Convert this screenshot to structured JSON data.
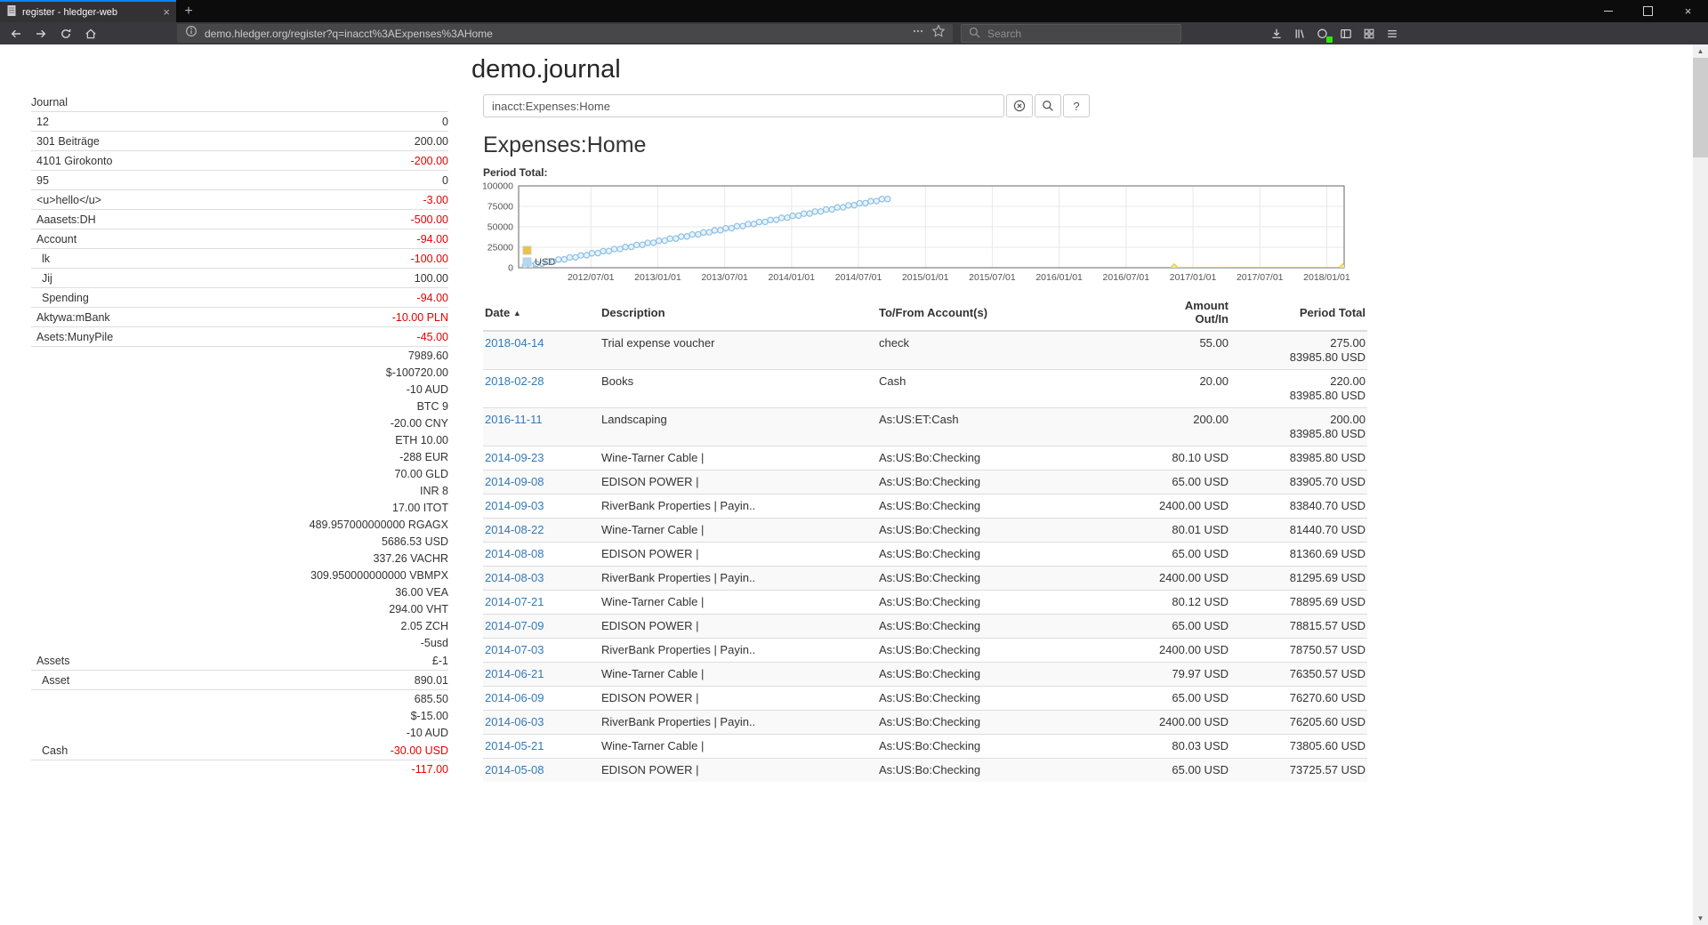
{
  "browser": {
    "tab_title": "register - hledger-web",
    "url": "demo.hledger.org/register?q=inacct%3AExpenses%3AHome",
    "search_placeholder": "Search"
  },
  "icons": {
    "tab_close": "×",
    "new_tab": "+",
    "window_close": "×",
    "sort_asc": "▲",
    "scroll_up": "▲",
    "scroll_down": "▼"
  },
  "page": {
    "title": "demo.journal",
    "query": "inacct:Expenses:Home",
    "heading": "Expenses:Home",
    "period_total_label": "Period Total:",
    "help_button": "?"
  },
  "sidebar": {
    "title": "Journal",
    "rows": [
      {
        "name": "12",
        "indent": 1,
        "amount": "0",
        "red": false,
        "border": true
      },
      {
        "name": "301 Beiträge",
        "indent": 1,
        "amount": "200.00",
        "red": false,
        "border": true
      },
      {
        "name": "4101 Girokonto",
        "indent": 1,
        "amount": "-200.00",
        "red": true,
        "border": true
      },
      {
        "name": "95",
        "indent": 1,
        "amount": "0",
        "red": false,
        "border": true
      },
      {
        "name": "<u>hello</u>",
        "indent": 1,
        "amount": "-3.00",
        "red": true,
        "border": true
      },
      {
        "name": "Aaasets:DH",
        "indent": 1,
        "amount": "-500.00",
        "red": true,
        "border": true
      },
      {
        "name": "Account",
        "indent": 1,
        "amount": "-94.00",
        "red": true,
        "border": true
      },
      {
        "name": "lk",
        "indent": 2,
        "amount": "-100.00",
        "red": true,
        "border": true
      },
      {
        "name": "Jij",
        "indent": 2,
        "amount": "100.00",
        "red": false,
        "border": true
      },
      {
        "name": "Spending",
        "indent": 2,
        "amount": "-94.00",
        "red": true,
        "border": true
      },
      {
        "name": "Aktywa:mBank",
        "indent": 1,
        "amount": "-10.00 PLN",
        "red": true,
        "border": true
      },
      {
        "name": "Asets:MunyPile",
        "indent": 1,
        "amount": "-45.00",
        "red": true,
        "border": true
      },
      {
        "name": "",
        "indent": 1,
        "amount": "7989.60",
        "red": false,
        "border": false
      },
      {
        "name": "",
        "indent": 1,
        "amount": "$-100720.00",
        "red": false,
        "border": false
      },
      {
        "name": "",
        "indent": 1,
        "amount": "-10 AUD",
        "red": false,
        "border": false
      },
      {
        "name": "",
        "indent": 1,
        "amount": "BTC 9",
        "red": false,
        "border": false
      },
      {
        "name": "",
        "indent": 1,
        "amount": "-20.00 CNY",
        "red": false,
        "border": false
      },
      {
        "name": "",
        "indent": 1,
        "amount": "ETH 10.00",
        "red": false,
        "border": false
      },
      {
        "name": "",
        "indent": 1,
        "amount": "-288 EUR",
        "red": false,
        "border": false
      },
      {
        "name": "",
        "indent": 1,
        "amount": "70.00 GLD",
        "red": false,
        "border": false
      },
      {
        "name": "",
        "indent": 1,
        "amount": "INR 8",
        "red": false,
        "border": false
      },
      {
        "name": "",
        "indent": 1,
        "amount": "17.00 ITOT",
        "red": false,
        "border": false
      },
      {
        "name": "",
        "indent": 1,
        "amount": "489.957000000000 RGAGX",
        "red": false,
        "border": false
      },
      {
        "name": "",
        "indent": 1,
        "amount": "5686.53 USD",
        "red": false,
        "border": false
      },
      {
        "name": "",
        "indent": 1,
        "amount": "337.26 VACHR",
        "red": false,
        "border": false
      },
      {
        "name": "",
        "indent": 1,
        "amount": "309.950000000000 VBMPX",
        "red": false,
        "border": false
      },
      {
        "name": "",
        "indent": 1,
        "amount": "36.00 VEA",
        "red": false,
        "border": false
      },
      {
        "name": "",
        "indent": 1,
        "amount": "294.00 VHT",
        "red": false,
        "border": false
      },
      {
        "name": "",
        "indent": 1,
        "amount": "2.05 ZCH",
        "red": false,
        "border": false
      },
      {
        "name": "",
        "indent": 1,
        "amount": "-5usd",
        "red": false,
        "border": false
      },
      {
        "name": "Assets",
        "indent": 1,
        "amount": "£-1",
        "red": false,
        "border": true
      },
      {
        "name": "Asset",
        "indent": 2,
        "amount": "890.01",
        "red": false,
        "border": true
      },
      {
        "name": "",
        "indent": 2,
        "amount": "685.50",
        "red": false,
        "border": false
      },
      {
        "name": "",
        "indent": 2,
        "amount": "$-15.00",
        "red": false,
        "border": false
      },
      {
        "name": "",
        "indent": 2,
        "amount": "-10 AUD",
        "red": false,
        "border": false
      },
      {
        "name": "Cash",
        "indent": 2,
        "amount": "-30.00 USD",
        "red": true,
        "border": true
      },
      {
        "name": "",
        "indent": 2,
        "amount": "-117.00",
        "red": true,
        "border": false
      }
    ]
  },
  "register": {
    "columns": [
      "Date",
      "Description",
      "To/From Account(s)",
      "Amount Out/In",
      "Period Total"
    ],
    "rows": [
      {
        "date": "2018-04-14",
        "description": "Trial expense voucher",
        "account": "check",
        "amount": "55.00",
        "totals": [
          "275.00",
          "83985.80 USD"
        ]
      },
      {
        "date": "2018-02-28",
        "description": "Books",
        "account": "Cash",
        "amount": "20.00",
        "totals": [
          "220.00",
          "83985.80 USD"
        ]
      },
      {
        "date": "2016-11-11",
        "description": "Landscaping",
        "account": "As:US:ET:Cash",
        "amount": "200.00",
        "totals": [
          "200.00",
          "83985.80 USD"
        ]
      },
      {
        "date": "2014-09-23",
        "description": "Wine-Tarner Cable |",
        "account": "As:US:Bo:Checking",
        "amount": "80.10 USD",
        "totals": [
          "83985.80 USD"
        ]
      },
      {
        "date": "2014-09-08",
        "description": "EDISON POWER |",
        "account": "As:US:Bo:Checking",
        "amount": "65.00 USD",
        "totals": [
          "83905.70 USD"
        ]
      },
      {
        "date": "2014-09-03",
        "description": "RiverBank Properties | Payin..",
        "account": "As:US:Bo:Checking",
        "amount": "2400.00 USD",
        "totals": [
          "83840.70 USD"
        ]
      },
      {
        "date": "2014-08-22",
        "description": "Wine-Tarner Cable |",
        "account": "As:US:Bo:Checking",
        "amount": "80.01 USD",
        "totals": [
          "81440.70 USD"
        ]
      },
      {
        "date": "2014-08-08",
        "description": "EDISON POWER |",
        "account": "As:US:Bo:Checking",
        "amount": "65.00 USD",
        "totals": [
          "81360.69 USD"
        ]
      },
      {
        "date": "2014-08-03",
        "description": "RiverBank Properties | Payin..",
        "account": "As:US:Bo:Checking",
        "amount": "2400.00 USD",
        "totals": [
          "81295.69 USD"
        ]
      },
      {
        "date": "2014-07-21",
        "description": "Wine-Tarner Cable |",
        "account": "As:US:Bo:Checking",
        "amount": "80.12 USD",
        "totals": [
          "78895.69 USD"
        ]
      },
      {
        "date": "2014-07-09",
        "description": "EDISON POWER |",
        "account": "As:US:Bo:Checking",
        "amount": "65.00 USD",
        "totals": [
          "78815.57 USD"
        ]
      },
      {
        "date": "2014-07-03",
        "description": "RiverBank Properties | Payin..",
        "account": "As:US:Bo:Checking",
        "amount": "2400.00 USD",
        "totals": [
          "78750.57 USD"
        ]
      },
      {
        "date": "2014-06-21",
        "description": "Wine-Tarner Cable |",
        "account": "As:US:Bo:Checking",
        "amount": "79.97 USD",
        "totals": [
          "76350.57 USD"
        ]
      },
      {
        "date": "2014-06-09",
        "description": "EDISON POWER |",
        "account": "As:US:Bo:Checking",
        "amount": "65.00 USD",
        "totals": [
          "76270.60 USD"
        ]
      },
      {
        "date": "2014-06-03",
        "description": "RiverBank Properties | Payin..",
        "account": "As:US:Bo:Checking",
        "amount": "2400.00 USD",
        "totals": [
          "76205.60 USD"
        ]
      },
      {
        "date": "2014-05-21",
        "description": "Wine-Tarner Cable |",
        "account": "As:US:Bo:Checking",
        "amount": "80.03 USD",
        "totals": [
          "73805.60 USD"
        ]
      },
      {
        "date": "2014-05-08",
        "description": "EDISON POWER |",
        "account": "As:US:Bo:Checking",
        "amount": "65.00 USD",
        "totals": [
          "73725.57 USD"
        ]
      }
    ]
  },
  "chart_data": {
    "type": "line",
    "title": "Period Total:",
    "xlabel": "",
    "ylabel": "",
    "xlim": [
      2011.96,
      2018.13
    ],
    "ylim": [
      0,
      100000
    ],
    "yticks": [
      0,
      25000,
      50000,
      75000,
      100000
    ],
    "xticks": [
      [
        2012.5,
        "2012/07/01"
      ],
      [
        2013.0,
        "2013/01/01"
      ],
      [
        2013.5,
        "2013/07/01"
      ],
      [
        2014.0,
        "2014/01/01"
      ],
      [
        2014.5,
        "2014/07/01"
      ],
      [
        2015.0,
        "2015/01/01"
      ],
      [
        2015.5,
        "2015/07/01"
      ],
      [
        2016.0,
        "2016/01/01"
      ],
      [
        2016.5,
        "2016/07/01"
      ],
      [
        2017.0,
        "2017/01/01"
      ],
      [
        2017.5,
        "2017/07/01"
      ],
      [
        2018.0,
        "2018/01/01"
      ]
    ],
    "grid": true,
    "legend_position": "top-left-inside",
    "series": [
      {
        "name": "USD",
        "color": "#edc240",
        "marker": "diamond",
        "style": "line",
        "points": [
          [
            2016.86,
            200
          ],
          [
            2018.12,
            220
          ],
          [
            2018.29,
            275
          ]
        ]
      },
      {
        "name": "USD",
        "color": "#afd8f8",
        "marker": "circle",
        "style": "points",
        "points": [
          [
            2012.008,
            2400
          ],
          [
            2012.052,
            2545
          ],
          [
            2012.092,
            4945
          ],
          [
            2012.135,
            5090
          ],
          [
            2012.175,
            7490
          ],
          [
            2012.218,
            7635
          ],
          [
            2012.258,
            10035
          ],
          [
            2012.302,
            10180
          ],
          [
            2012.342,
            12580
          ],
          [
            2012.385,
            12725
          ],
          [
            2012.425,
            15125
          ],
          [
            2012.468,
            15270
          ],
          [
            2012.508,
            17670
          ],
          [
            2012.552,
            17815
          ],
          [
            2012.592,
            20215
          ],
          [
            2012.635,
            20360
          ],
          [
            2012.675,
            22760
          ],
          [
            2012.718,
            22905
          ],
          [
            2012.758,
            25305
          ],
          [
            2012.802,
            25450
          ],
          [
            2012.842,
            27850
          ],
          [
            2012.885,
            27995
          ],
          [
            2012.925,
            30395
          ],
          [
            2012.968,
            30540
          ],
          [
            2013.008,
            32940
          ],
          [
            2013.052,
            33085
          ],
          [
            2013.092,
            35485
          ],
          [
            2013.135,
            35630
          ],
          [
            2013.175,
            38030
          ],
          [
            2013.218,
            38175
          ],
          [
            2013.258,
            40575
          ],
          [
            2013.302,
            40720
          ],
          [
            2013.342,
            43120
          ],
          [
            2013.385,
            43265
          ],
          [
            2013.425,
            45665
          ],
          [
            2013.468,
            45810
          ],
          [
            2013.508,
            48210
          ],
          [
            2013.552,
            48355
          ],
          [
            2013.592,
            50755
          ],
          [
            2013.635,
            50900
          ],
          [
            2013.675,
            53300
          ],
          [
            2013.718,
            53445
          ],
          [
            2013.758,
            55845
          ],
          [
            2013.802,
            55990
          ],
          [
            2013.842,
            58390
          ],
          [
            2013.885,
            58535
          ],
          [
            2013.925,
            60935
          ],
          [
            2013.968,
            61080
          ],
          [
            2014.008,
            63480
          ],
          [
            2014.052,
            63625
          ],
          [
            2014.092,
            66025
          ],
          [
            2014.135,
            66170
          ],
          [
            2014.175,
            68570
          ],
          [
            2014.218,
            68715
          ],
          [
            2014.258,
            71115
          ],
          [
            2014.302,
            71260
          ],
          [
            2014.342,
            73660
          ],
          [
            2014.385,
            73805
          ],
          [
            2014.425,
            76205
          ],
          [
            2014.468,
            76350
          ],
          [
            2014.508,
            78750
          ],
          [
            2014.552,
            78895
          ],
          [
            2014.592,
            81295
          ],
          [
            2014.635,
            81440
          ],
          [
            2014.675,
            83840
          ],
          [
            2014.718,
            83985
          ]
        ]
      }
    ]
  }
}
